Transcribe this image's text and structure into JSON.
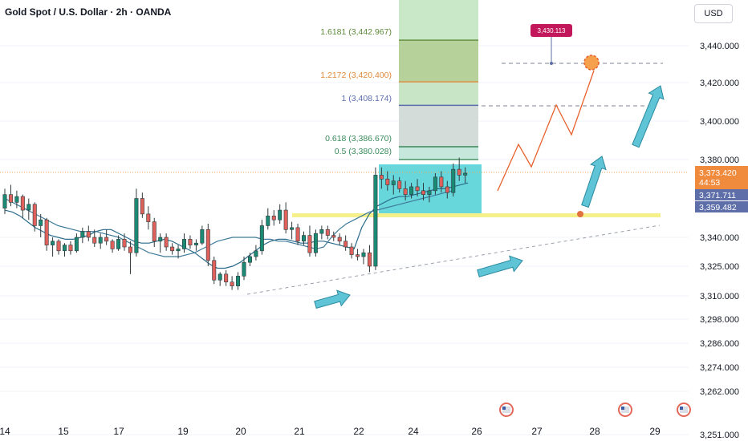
{
  "header": {
    "title": "Gold Spot / U.S. Dollar · 2h · OANDA",
    "currency_button": "USD"
  },
  "colors": {
    "bull": "#26a69a",
    "bear": "#ef5350",
    "candle_body_bull": "#1b8a74",
    "candle_body_bear": "#e0605c",
    "fib_green": "#5d8a3a",
    "fib_orange": "#e08a3b",
    "fib_blue": "#5b6dae",
    "fib_teal": "#3a8a5a",
    "cyan_box": "#4dd0d6",
    "yellow_zone": "#f5f08a",
    "projection_line": "#e8602c",
    "arrow": "#5ec4d6",
    "price_tag_orange": "#f08a3c",
    "price_tag_blue": "#5d6ea8"
  },
  "chart_data": {
    "type": "candlestick",
    "title": "Gold Spot / U.S. Dollar · 2h · OANDA",
    "ylim": [
      3249,
      3476
    ],
    "y_ticks": [
      "3,440.000",
      "3,420.000",
      "3,400.000",
      "3,380.000",
      "3,340.000",
      "3,325.000",
      "3,310.000",
      "3,298.000",
      "3,286.000",
      "3,274.000",
      "3,262.000",
      "3,251.000"
    ],
    "y_tick_values": [
      3440,
      3420,
      3400,
      3380,
      3340,
      3325,
      3310,
      3298,
      3286,
      3274,
      3262,
      3251
    ],
    "x_ticks": [
      "14",
      "15",
      "17",
      "19",
      "20",
      "21",
      "22",
      "24",
      "26",
      "27",
      "28",
      "29"
    ],
    "x_tick_index": [
      0,
      12,
      24,
      37,
      49,
      61,
      73,
      85,
      98,
      110,
      122,
      134
    ],
    "current_price": "3,373.420",
    "countdown": "44:53",
    "price_labels": [
      {
        "text": "3,371.711",
        "value": 3371.711
      },
      {
        "text": "3,359.482",
        "value": 3359.482
      }
    ],
    "target_label": {
      "text": "3,430.113",
      "value": 3430.113
    },
    "fib_levels": [
      {
        "label": "1.6181 (3,442.967)",
        "value": 3442.967,
        "color": "#5d8a3a"
      },
      {
        "label": "1.2172 (3,420.400)",
        "value": 3420.4,
        "color": "#e08a3b"
      },
      {
        "label": "1 (3,408.174)",
        "value": 3408.174,
        "color": "#5b6dae"
      },
      {
        "label": "0.618 (3,386.670)",
        "value": 3386.67,
        "color": "#3a8a5a"
      },
      {
        "label": "0.5 (3,380.028)",
        "value": 3380.028,
        "color": "#3a8a5a"
      }
    ],
    "support_zone": 3354,
    "candles": [
      [
        3355,
        3365,
        3352,
        3362
      ],
      [
        3362,
        3367,
        3356,
        3358
      ],
      [
        3358,
        3364,
        3355,
        3361
      ],
      [
        3361,
        3362,
        3350,
        3354
      ],
      [
        3354,
        3360,
        3349,
        3357
      ],
      [
        3357,
        3358,
        3343,
        3346
      ],
      [
        3346,
        3352,
        3340,
        3349
      ],
      [
        3349,
        3350,
        3333,
        3336
      ],
      [
        3336,
        3340,
        3330,
        3338
      ],
      [
        3338,
        3339,
        3331,
        3333
      ],
      [
        3333,
        3337,
        3330,
        3336
      ],
      [
        3336,
        3338,
        3331,
        3333
      ],
      [
        3333,
        3342,
        3332,
        3340
      ],
      [
        3340,
        3345,
        3337,
        3343
      ],
      [
        3343,
        3346,
        3338,
        3340
      ],
      [
        3340,
        3344,
        3335,
        3337
      ],
      [
        3337,
        3342,
        3334,
        3340
      ],
      [
        3340,
        3344,
        3336,
        3338
      ],
      [
        3338,
        3339,
        3332,
        3334
      ],
      [
        3334,
        3341,
        3333,
        3339
      ],
      [
        3339,
        3342,
        3333,
        3335
      ],
      [
        3335,
        3338,
        3321,
        3332
      ],
      [
        3332,
        3365,
        3330,
        3360
      ],
      [
        3360,
        3363,
        3350,
        3352
      ],
      [
        3352,
        3356,
        3344,
        3348
      ],
      [
        3348,
        3350,
        3335,
        3338
      ],
      [
        3338,
        3342,
        3332,
        3340
      ],
      [
        3340,
        3342,
        3333,
        3335
      ],
      [
        3335,
        3337,
        3331,
        3333
      ],
      [
        3333,
        3336,
        3329,
        3334
      ],
      [
        3334,
        3342,
        3332,
        3339
      ],
      [
        3339,
        3341,
        3334,
        3336
      ],
      [
        3336,
        3339,
        3333,
        3337
      ],
      [
        3337,
        3346,
        3336,
        3344
      ],
      [
        3344,
        3347,
        3325,
        3328
      ],
      [
        3328,
        3330,
        3316,
        3318
      ],
      [
        3318,
        3322,
        3315,
        3321
      ],
      [
        3321,
        3323,
        3315,
        3317
      ],
      [
        3317,
        3320,
        3313,
        3315
      ],
      [
        3315,
        3322,
        3313,
        3320
      ],
      [
        3320,
        3330,
        3318,
        3327
      ],
      [
        3327,
        3332,
        3325,
        3330
      ],
      [
        3330,
        3336,
        3328,
        3333
      ],
      [
        3333,
        3349,
        3331,
        3346
      ],
      [
        3346,
        3355,
        3344,
        3351
      ],
      [
        3351,
        3354,
        3346,
        3349
      ],
      [
        3349,
        3357,
        3347,
        3354
      ],
      [
        3354,
        3358,
        3342,
        3344
      ],
      [
        3344,
        3348,
        3339,
        3345
      ],
      [
        3345,
        3347,
        3336,
        3338
      ],
      [
        3338,
        3343,
        3336,
        3341
      ],
      [
        3341,
        3346,
        3330,
        3332
      ],
      [
        3332,
        3344,
        3330,
        3342
      ],
      [
        3342,
        3346,
        3339,
        3344
      ],
      [
        3344,
        3346,
        3339,
        3341
      ],
      [
        3341,
        3343,
        3338,
        3340
      ],
      [
        3340,
        3342,
        3336,
        3338
      ],
      [
        3338,
        3341,
        3333,
        3335
      ],
      [
        3335,
        3337,
        3329,
        3331
      ],
      [
        3331,
        3334,
        3328,
        3330
      ],
      [
        3330,
        3334,
        3326,
        3332
      ],
      [
        3332,
        3336,
        3322,
        3325
      ],
      [
        3325,
        3376,
        3323,
        3372
      ],
      [
        3372,
        3376,
        3365,
        3370
      ],
      [
        3370,
        3374,
        3364,
        3367
      ],
      [
        3367,
        3372,
        3362,
        3369
      ],
      [
        3369,
        3371,
        3363,
        3365
      ],
      [
        3365,
        3369,
        3359,
        3362
      ],
      [
        3362,
        3368,
        3360,
        3366
      ],
      [
        3366,
        3370,
        3361,
        3364
      ],
      [
        3364,
        3368,
        3359,
        3362
      ],
      [
        3362,
        3366,
        3358,
        3364
      ],
      [
        3364,
        3373,
        3362,
        3371
      ],
      [
        3371,
        3374,
        3363,
        3366
      ],
      [
        3366,
        3369,
        3360,
        3363
      ],
      [
        3363,
        3378,
        3361,
        3375
      ],
      [
        3375,
        3381,
        3369,
        3372
      ],
      [
        3372,
        3376,
        3368,
        3373
      ]
    ],
    "ma_fast": [
      3354,
      3353,
      3351,
      3348,
      3345,
      3343,
      3341,
      3340,
      3339,
      3339,
      3340,
      3341,
      3343,
      3344,
      3344,
      3342,
      3340,
      3338,
      3337,
      3337,
      3338,
      3339,
      3338,
      3336,
      3334,
      3332,
      3329,
      3326,
      3324,
      3324,
      3325,
      3327,
      3330,
      3333,
      3336,
      3338,
      3339,
      3339,
      3338,
      3337,
      3337,
      3338,
      3338,
      3337,
      3336,
      3335,
      3334,
      3345,
      3352,
      3356,
      3358,
      3360,
      3361,
      3361,
      3362,
      3363,
      3364,
      3365,
      3365,
      3366,
      3367,
      3368
    ],
    "ma_slow": [
      3360,
      3358,
      3356,
      3354,
      3352,
      3350,
      3348,
      3346,
      3345,
      3344,
      3343,
      3343,
      3343,
      3342,
      3341,
      3340,
      3338,
      3336,
      3334,
      3332,
      3331,
      3330,
      3330,
      3330,
      3331,
      3332,
      3334,
      3336,
      3338,
      3339,
      3340,
      3340,
      3340,
      3340,
      3339,
      3339,
      3338,
      3338,
      3337,
      3336,
      3335,
      3334,
      3335,
      3340,
      3344,
      3347,
      3349,
      3351,
      3353,
      3354,
      3355,
      3356,
      3357,
      3358,
      3359,
      3360,
      3361,
      3362,
      3363,
      3364
    ],
    "projection": [
      [
        3374,
        3364
      ],
      [
        3386,
        3381
      ],
      [
        3392,
        3369
      ],
      [
        3402,
        3399
      ],
      [
        3408,
        3385
      ],
      [
        3416,
        3426
      ]
    ]
  }
}
